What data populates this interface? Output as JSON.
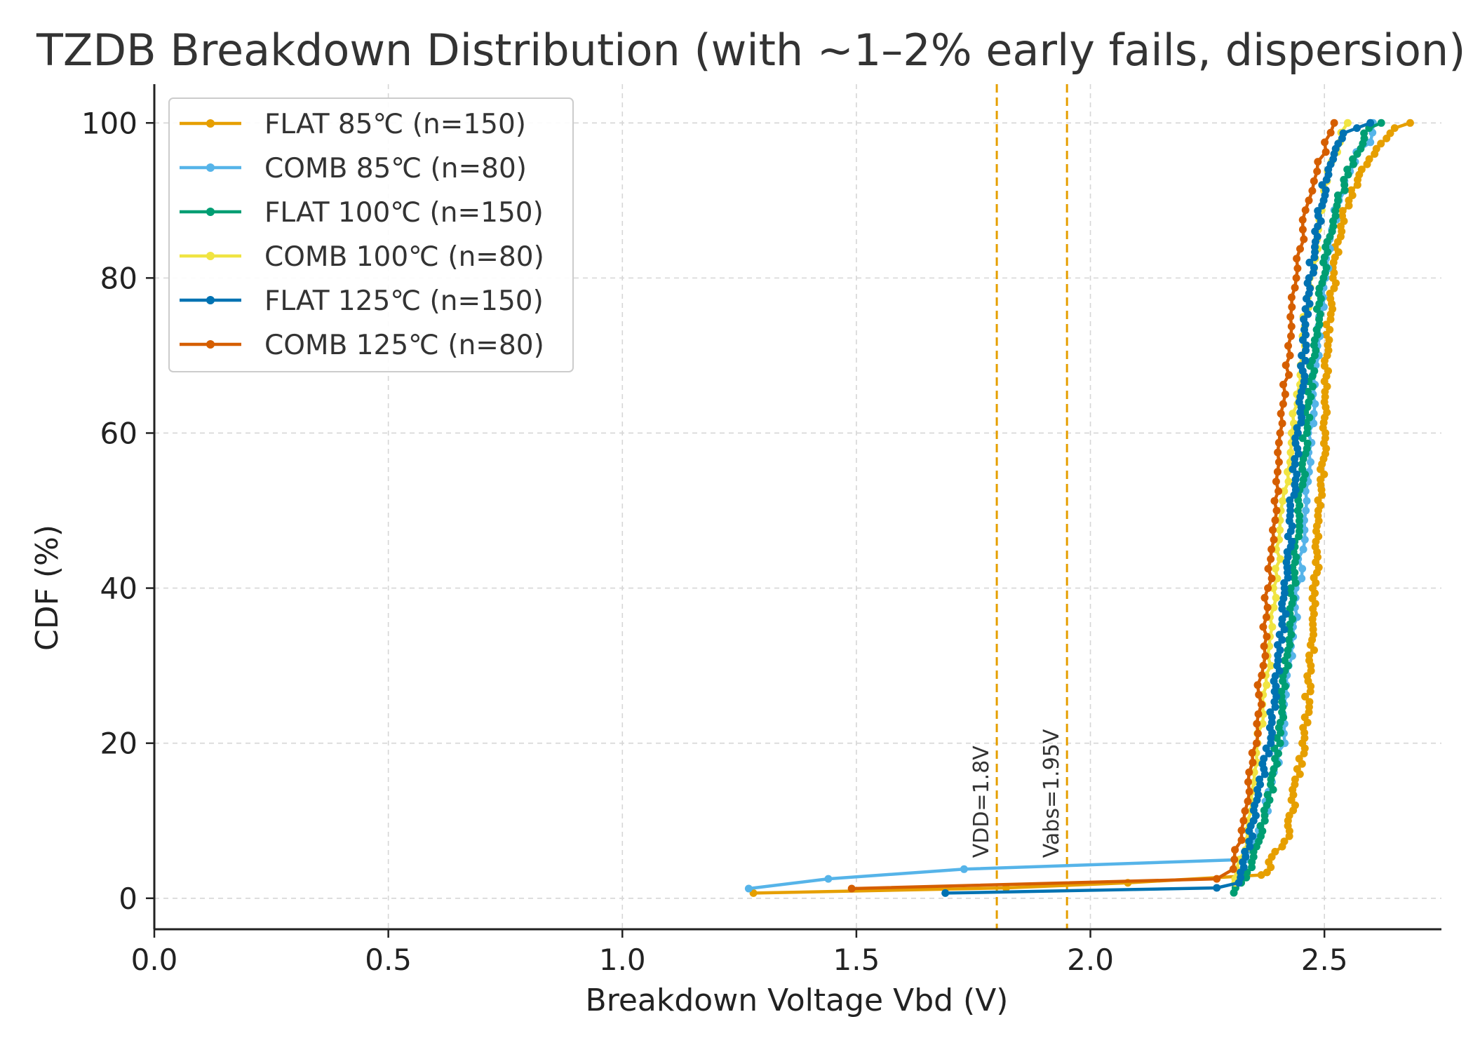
{
  "chart_data": {
    "type": "line",
    "title": "TZDB Breakdown Distribution (with ~1–2% early fails, dispersion)",
    "xlabel": "Breakdown Voltage Vbd (V)",
    "ylabel": "CDF (%)",
    "xlim": [
      0.0,
      2.75
    ],
    "ylim": [
      -4,
      105
    ],
    "xticks": [
      "0.0",
      "0.5",
      "1.0",
      "1.5",
      "2.0",
      "2.5"
    ],
    "yticks": [
      "0",
      "20",
      "40",
      "60",
      "80",
      "100"
    ],
    "grid": true,
    "legend_position": "top-left",
    "reference_lines": [
      {
        "x": 1.8,
        "label": "VDD=1.8V",
        "color": "#E69F00"
      },
      {
        "x": 1.95,
        "label": "Vabs=1.95V",
        "color": "#E69F00"
      }
    ],
    "series": [
      {
        "name": "FLAT 85℃ (n=150)",
        "color": "#E69F00",
        "n": 150,
        "early_fails": [
          1.28,
          1.82,
          2.08
        ],
        "curve": [
          [
            2.37,
            3
          ],
          [
            2.42,
            8
          ],
          [
            2.455,
            20
          ],
          [
            2.47,
            30
          ],
          [
            2.485,
            45
          ],
          [
            2.5,
            60
          ],
          [
            2.51,
            75
          ],
          [
            2.53,
            85
          ],
          [
            2.55,
            90
          ],
          [
            2.59,
            95
          ],
          [
            2.64,
            99
          ],
          [
            2.68,
            100
          ]
        ]
      },
      {
        "name": "COMB 85℃ (n=80)",
        "color": "#56B4E9",
        "n": 80,
        "early_fails": [
          1.27,
          1.44,
          1.73
        ],
        "curve": [
          [
            2.33,
            5
          ],
          [
            2.37,
            10
          ],
          [
            2.41,
            20
          ],
          [
            2.44,
            38
          ],
          [
            2.46,
            50
          ],
          [
            2.48,
            68
          ],
          [
            2.5,
            80
          ],
          [
            2.53,
            90
          ],
          [
            2.57,
            96
          ],
          [
            2.6,
            98
          ]
        ]
      },
      {
        "name": "FLAT 100℃ (n=150)",
        "color": "#009E73",
        "n": 150,
        "early_fails": [],
        "curve": [
          [
            2.31,
            0.7
          ],
          [
            2.35,
            5
          ],
          [
            2.39,
            15
          ],
          [
            2.42,
            30
          ],
          [
            2.44,
            45
          ],
          [
            2.46,
            60
          ],
          [
            2.48,
            72
          ],
          [
            2.5,
            82
          ],
          [
            2.53,
            90
          ],
          [
            2.56,
            95
          ],
          [
            2.59,
            99
          ],
          [
            2.62,
            100
          ]
        ]
      },
      {
        "name": "COMB 100℃ (n=80)",
        "color": "#F0E442",
        "n": 80,
        "early_fails": [],
        "curve": [
          [
            2.31,
            2
          ],
          [
            2.34,
            10
          ],
          [
            2.38,
            30
          ],
          [
            2.41,
            50
          ],
          [
            2.44,
            65
          ],
          [
            2.47,
            80
          ],
          [
            2.5,
            90
          ],
          [
            2.52,
            96
          ],
          [
            2.55,
            100
          ]
        ]
      },
      {
        "name": "FLAT 125℃ (n=150)",
        "color": "#0072B2",
        "n": 150,
        "early_fails": [
          1.69,
          2.27
        ],
        "curve": [
          [
            2.32,
            2
          ],
          [
            2.35,
            10
          ],
          [
            2.38,
            20
          ],
          [
            2.41,
            35
          ],
          [
            2.43,
            50
          ],
          [
            2.45,
            65
          ],
          [
            2.46,
            75
          ],
          [
            2.48,
            85
          ],
          [
            2.5,
            92
          ],
          [
            2.52,
            97
          ],
          [
            2.55,
            99
          ],
          [
            2.6,
            100
          ]
        ]
      },
      {
        "name": "COMB 125℃ (n=80)",
        "color": "#D55E00",
        "n": 80,
        "early_fails": [
          1.49,
          2.27
        ],
        "curve": [
          [
            2.3,
            3
          ],
          [
            2.33,
            10
          ],
          [
            2.36,
            25
          ],
          [
            2.38,
            40
          ],
          [
            2.4,
            55
          ],
          [
            2.42,
            68
          ],
          [
            2.44,
            80
          ],
          [
            2.46,
            88
          ],
          [
            2.49,
            95
          ],
          [
            2.52,
            100
          ]
        ]
      }
    ]
  }
}
